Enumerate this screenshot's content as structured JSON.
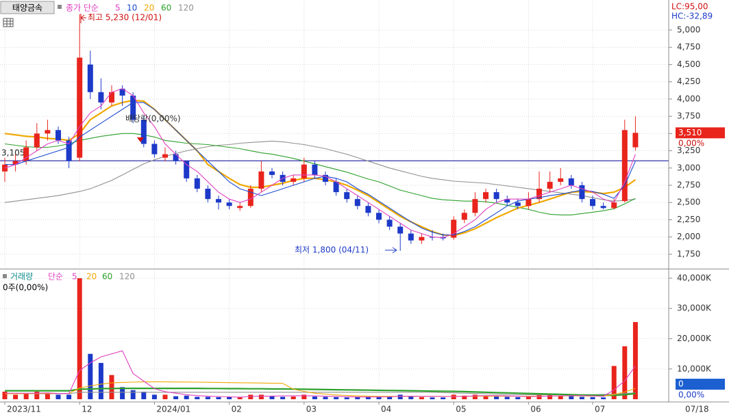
{
  "chart_data": [
    {
      "type": "candlestick",
      "title": "태양금속",
      "series_label": "종가 단순",
      "up_color": "#e8241c",
      "down_color": "#1c39c8",
      "open": [
        2950,
        3050,
        3100,
        3300,
        3500,
        3550,
        3400,
        3150,
        4500,
        4100,
        3950,
        4150,
        4050,
        3700,
        3350,
        3150,
        3200,
        3100,
        2850,
        2700,
        2550,
        2500,
        2420,
        2450,
        2700,
        2950,
        2900,
        2800,
        2850,
        3050,
        2900,
        2800,
        2650,
        2550,
        2450,
        2350,
        2250,
        2150,
        2050,
        1950,
        2000,
        2000,
        1990,
        2250,
        2350,
        2550,
        2650,
        2550,
        2500,
        2450,
        2550,
        2700,
        2800,
        2850,
        2750,
        2550,
        2450,
        2420,
        2520,
        3300
      ],
      "high": [
        3150,
        3200,
        3400,
        3650,
        3700,
        3600,
        3450,
        5230,
        4700,
        4300,
        4200,
        4200,
        4100,
        3750,
        3400,
        3300,
        3250,
        3100,
        2900,
        2750,
        2600,
        2550,
        2500,
        2750,
        3100,
        3000,
        2950,
        2900,
        3150,
        3100,
        2950,
        2850,
        2700,
        2600,
        2500,
        2400,
        2300,
        2200,
        2100,
        2050,
        2100,
        2050,
        2300,
        2400,
        2650,
        2700,
        2700,
        2600,
        2550,
        2650,
        2950,
        2950,
        3000,
        2900,
        2800,
        2600,
        2500,
        2550,
        3700,
        3750
      ],
      "low": [
        2800,
        2950,
        3050,
        3250,
        3400,
        3350,
        3000,
        3100,
        4000,
        3850,
        3900,
        3900,
        3650,
        3300,
        3150,
        3100,
        3050,
        2800,
        2650,
        2500,
        2400,
        2400,
        2380,
        2420,
        2650,
        2850,
        2750,
        2750,
        2800,
        2850,
        2750,
        2600,
        2500,
        2400,
        2300,
        2200,
        2100,
        1800,
        1900,
        1900,
        1950,
        1950,
        1960,
        2200,
        2300,
        2500,
        2500,
        2450,
        2400,
        2400,
        2500,
        2650,
        2750,
        2700,
        2500,
        2400,
        2400,
        2400,
        2500,
        3250
      ],
      "close": [
        3050,
        3100,
        3300,
        3500,
        3550,
        3400,
        3100,
        4600,
        4100,
        3950,
        4100,
        4050,
        3700,
        3350,
        3200,
        3200,
        3100,
        2850,
        2700,
        2550,
        2500,
        2450,
        2450,
        2700,
        2950,
        2900,
        2800,
        2850,
        3050,
        2900,
        2800,
        2650,
        2550,
        2450,
        2350,
        2250,
        2150,
        2050,
        1950,
        2000,
        2000,
        1980,
        2250,
        2350,
        2550,
        2650,
        2550,
        2500,
        2450,
        2550,
        2700,
        2800,
        2850,
        2750,
        2550,
        2450,
        2420,
        2500,
        3550,
        3510
      ],
      "series": [
        {
          "name": "5",
          "color": "#e040c0",
          "values": [
            3000,
            3050,
            3150,
            3250,
            3350,
            3400,
            3350,
            3600,
            3800,
            3900,
            4100,
            4150,
            4050,
            3800,
            3600,
            3350,
            3200,
            3050,
            2950,
            2800,
            2650,
            2550,
            2500,
            2550,
            2650,
            2750,
            2850,
            2900,
            2900,
            2900,
            2880,
            2800,
            2700,
            2600,
            2500,
            2400,
            2300,
            2200,
            2100,
            2050,
            2000,
            1990,
            2050,
            2150,
            2250,
            2400,
            2500,
            2550,
            2550,
            2550,
            2600,
            2650,
            2700,
            2750,
            2700,
            2650,
            2550,
            2500,
            2800,
            3200
          ]
        },
        {
          "name": "10",
          "color": "#1a4ad0",
          "values": [
            3050,
            3050,
            3100,
            3150,
            3200,
            3250,
            3300,
            3450,
            3550,
            3650,
            3750,
            3850,
            3950,
            3950,
            3850,
            3700,
            3550,
            3400,
            3250,
            3100,
            2950,
            2800,
            2700,
            2650,
            2600,
            2650,
            2700,
            2750,
            2800,
            2850,
            2880,
            2850,
            2800,
            2700,
            2620,
            2520,
            2420,
            2320,
            2220,
            2130,
            2070,
            2030,
            2030,
            2080,
            2150,
            2250,
            2350,
            2450,
            2520,
            2550,
            2570,
            2600,
            2620,
            2650,
            2680,
            2660,
            2620,
            2560,
            2750,
            3100
          ]
        },
        {
          "name": "20",
          "color": "#f0a800",
          "values": [
            3500,
            3480,
            3460,
            3450,
            3430,
            3420,
            3400,
            3500,
            3700,
            3800,
            3900,
            3950,
            3980,
            3970,
            3850,
            3700,
            3550,
            3400,
            3250,
            3050,
            2950,
            2850,
            2760,
            2720,
            2720,
            2750,
            2780,
            2820,
            2850,
            2850,
            2830,
            2800,
            2750,
            2680,
            2600,
            2500,
            2400,
            2300,
            2220,
            2150,
            2080,
            2030,
            2020,
            2060,
            2120,
            2200,
            2280,
            2350,
            2420,
            2460,
            2500,
            2550,
            2600,
            2650,
            2660,
            2650,
            2630,
            2650,
            2720,
            2830
          ]
        },
        {
          "name": "60",
          "color": "#2ca02c",
          "values": [
            3350,
            3330,
            3310,
            3300,
            3300,
            3320,
            3350,
            3400,
            3430,
            3460,
            3480,
            3500,
            3500,
            3480,
            3450,
            3400,
            3380,
            3360,
            3350,
            3340,
            3320,
            3300,
            3280,
            3250,
            3220,
            3200,
            3170,
            3140,
            3100,
            3060,
            3020,
            2980,
            2940,
            2890,
            2840,
            2800,
            2740,
            2680,
            2640,
            2600,
            2560,
            2540,
            2530,
            2520,
            2520,
            2510,
            2490,
            2460,
            2430,
            2400,
            2360,
            2330,
            2320,
            2320,
            2340,
            2360,
            2380,
            2410,
            2480,
            2560
          ]
        },
        {
          "name": "120",
          "color": "#909090",
          "values": [
            2500,
            2520,
            2540,
            2560,
            2580,
            2600,
            2630,
            2660,
            2700,
            2760,
            2820,
            2900,
            2980,
            3060,
            3120,
            3170,
            3210,
            3250,
            3280,
            3310,
            3330,
            3340,
            3360,
            3370,
            3380,
            3390,
            3380,
            3360,
            3340,
            3310,
            3280,
            3240,
            3200,
            3150,
            3100,
            3050,
            3000,
            2960,
            2920,
            2880,
            2850,
            2830,
            2810,
            2800,
            2790,
            2780,
            2760,
            2740,
            2720,
            2700,
            2680,
            2660,
            2640,
            2620,
            2600,
            2570,
            2540,
            2520,
            2530,
            2550
          ]
        }
      ],
      "ylim": [
        1545,
        5400
      ],
      "yticks": [
        {
          "value": 1750,
          "label": "1,750"
        },
        {
          "value": 2000,
          "label": "2,000"
        },
        {
          "value": 2250,
          "label": "2,250"
        },
        {
          "value": 2500,
          "label": "2,500"
        },
        {
          "value": 2750,
          "label": "2,750"
        },
        {
          "value": 3000,
          "label": "3,000"
        },
        {
          "value": 3250,
          "label": "3,250"
        },
        {
          "value": 3500,
          "label": "3,500"
        },
        {
          "value": 3750,
          "label": "3,750"
        },
        {
          "value": 4000,
          "label": "4,000"
        },
        {
          "value": 4250,
          "label": "4,250"
        },
        {
          "value": 4500,
          "label": "4,500"
        },
        {
          "value": 4750,
          "label": "4,750"
        },
        {
          "value": 5000,
          "label": "5,000"
        }
      ],
      "grid": true,
      "hline": {
        "value": 3105,
        "label": "3,105",
        "color": "#1a1aa0"
      },
      "high_note": "최고 5,230 (12/01)",
      "low_note": "최저 1,800 (04/11)",
      "dividend_note": "배당락(0,00%)",
      "last_price": {
        "value": 3510,
        "label": "3,510"
      },
      "change": "0,00%",
      "lc": "LC:95,00",
      "hc": "HC:-32,89"
    },
    {
      "type": "bar",
      "title": "거래량",
      "series_label": "단순",
      "info": "0주(0,00%)",
      "categories": [
        "2023/11",
        null,
        null,
        null,
        null,
        null,
        null,
        "12",
        null,
        null,
        null,
        null,
        null,
        null,
        "2024/01",
        null,
        null,
        null,
        null,
        null,
        null,
        "02",
        null,
        null,
        null,
        null,
        null,
        null,
        "03",
        null,
        null,
        null,
        null,
        null,
        null,
        "04",
        null,
        null,
        null,
        null,
        null,
        null,
        "05",
        null,
        null,
        null,
        null,
        null,
        null,
        "06",
        null,
        null,
        null,
        null,
        null,
        "07",
        null,
        null,
        null,
        null
      ],
      "last_date": "07/18",
      "values": [
        2500,
        1500,
        2000,
        2500,
        2000,
        1500,
        1500,
        40000,
        15000,
        12000,
        8000,
        4000,
        3000,
        2500,
        1500,
        1500,
        1000,
        1200,
        800,
        800,
        700,
        700,
        600,
        1500,
        1500,
        1000,
        800,
        900,
        1500,
        900,
        800,
        700,
        600,
        700,
        800,
        900,
        1000,
        1500,
        1000,
        700,
        600,
        600,
        1500,
        1200,
        1500,
        1200,
        900,
        800,
        700,
        900,
        1500,
        1400,
        1200,
        1000,
        800,
        700,
        600,
        11000,
        17500,
        25500
      ],
      "series": [
        {
          "name": "5",
          "color": "#e040c0",
          "values": [
            2000,
            2000,
            2000,
            2000,
            2100,
            1900,
            1900,
            9500,
            12000,
            14000,
            15000,
            16000,
            8500,
            6000,
            3500,
            2500,
            2000,
            1500,
            1200,
            1000,
            900,
            800,
            700,
            900,
            1000,
            1050,
            1100,
            1150,
            1150,
            1100,
            1000,
            950,
            850,
            750,
            750,
            750,
            800,
            950,
            1000,
            950,
            950,
            900,
            900,
            950,
            1100,
            1200,
            1200,
            1100,
            1000,
            850,
            950,
            1050,
            1150,
            1200,
            1200,
            1100,
            950,
            3100,
            6100,
            11000
          ]
        },
        {
          "name": "20",
          "color": "#f0a800",
          "values": [
            1800,
            1800,
            1850,
            1900,
            1900,
            1900,
            1900,
            3700,
            4400,
            5000,
            5400,
            5550,
            5650,
            5750,
            5750,
            5750,
            5700,
            5700,
            5650,
            5600,
            5550,
            5500,
            5450,
            5400,
            5350,
            5300,
            5250,
            3300,
            2600,
            2000,
            1700,
            1400,
            1250,
            1100,
            1000,
            950,
            950,
            950,
            950,
            950,
            950,
            950,
            950,
            950,
            1000,
            1000,
            1000,
            1000,
            1000,
            1000,
            1050,
            1050,
            1100,
            1100,
            1100,
            1050,
            1050,
            1550,
            2400,
            3600
          ]
        },
        {
          "name": "60",
          "color": "#2ca02c",
          "values": [
            2800,
            2800,
            2800,
            2800,
            2800,
            2800,
            2800,
            3300,
            3400,
            3500,
            3550,
            3600,
            3600,
            3600,
            3600,
            3600,
            3600,
            3600,
            3600,
            3550,
            3550,
            3500,
            3500,
            3450,
            3450,
            3400,
            3400,
            3350,
            3300,
            3250,
            3200,
            3150,
            3100,
            3050,
            3000,
            2950,
            2900,
            2850,
            2800,
            2750,
            2700,
            2650,
            2600,
            2500,
            2400,
            2300,
            2200,
            2100,
            2000,
            1900,
            1800,
            1700,
            1600,
            1500,
            1400,
            1350,
            1300,
            1300,
            1500,
            1900
          ]
        },
        {
          "name": "120",
          "color": "#909090",
          "values": [
            1800,
            1800,
            1800,
            1800,
            1800,
            1800,
            1800,
            2300,
            2300,
            2300,
            2300,
            2300,
            2300,
            2300,
            2300,
            2300,
            2300,
            2300,
            2300,
            2300,
            2300,
            2300,
            2300,
            2300,
            2300,
            2300,
            2300,
            2300,
            2300,
            2300,
            2300,
            2300,
            2300,
            2300,
            2300,
            2300,
            2300,
            2300,
            2300,
            2300,
            2300,
            2200,
            2100,
            2000,
            1900,
            1800,
            1700,
            1600,
            1500,
            1500,
            1500,
            1500,
            1500,
            1500,
            1500,
            1500,
            1600,
            1700,
            1900,
            2100
          ]
        }
      ],
      "ylim": [
        -900,
        42700
      ],
      "yticks": [
        {
          "value": 10000,
          "label": "10,000K"
        },
        {
          "value": 20000,
          "label": "20,000K"
        },
        {
          "value": 30000,
          "label": "30,000K"
        },
        {
          "value": 40000,
          "label": "40,000K"
        }
      ],
      "last_value": 0,
      "change": "0,00%"
    }
  ]
}
